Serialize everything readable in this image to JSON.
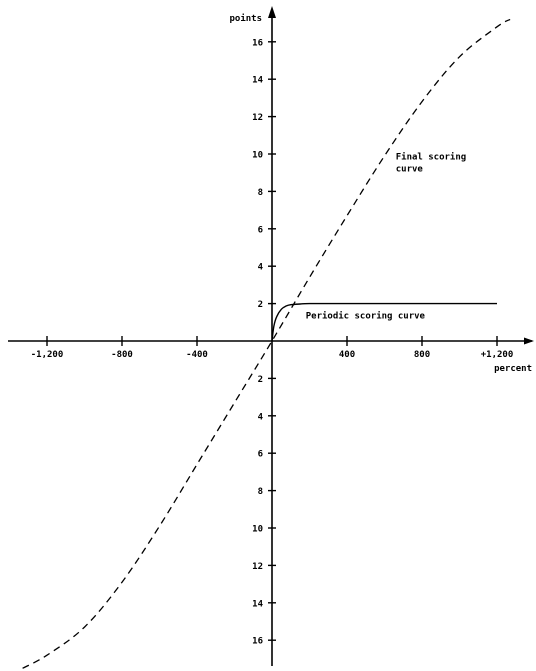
{
  "chart_data": {
    "type": "line",
    "xlabel": "percent",
    "ylabel": "points",
    "xlim": [
      -1200,
      1200
    ],
    "ylim": [
      -17,
      17
    ],
    "x_ticks": [
      {
        "value": -1200,
        "label": "-1,200"
      },
      {
        "value": -800,
        "label": "-800"
      },
      {
        "value": -400,
        "label": "-400"
      },
      {
        "value": 400,
        "label": "400"
      },
      {
        "value": 800,
        "label": "800"
      },
      {
        "value": 1200,
        "label": "+1,200"
      }
    ],
    "y_ticks_upper": [
      {
        "value": 16,
        "label": "16"
      },
      {
        "value": 14,
        "label": "14"
      },
      {
        "value": 12,
        "label": "12"
      },
      {
        "value": 10,
        "label": "10"
      },
      {
        "value": 8,
        "label": "8"
      },
      {
        "value": 6,
        "label": "6"
      },
      {
        "value": 4,
        "label": "4"
      },
      {
        "value": 2,
        "label": "2"
      }
    ],
    "y_ticks_lower": [
      {
        "value": -2,
        "label": "2"
      },
      {
        "value": -4,
        "label": "4"
      },
      {
        "value": -6,
        "label": "6"
      },
      {
        "value": -8,
        "label": "8"
      },
      {
        "value": -10,
        "label": "10"
      },
      {
        "value": -12,
        "label": "12"
      },
      {
        "value": -14,
        "label": "14"
      },
      {
        "value": -16,
        "label": "16"
      }
    ],
    "series": [
      {
        "name": "Final scoring curve",
        "style": "dashed",
        "x": [
          -1330,
          -1200,
          -1000,
          -800,
          -600,
          -400,
          -200,
          0,
          200,
          400,
          600,
          800,
          1000,
          1200,
          1270
        ],
        "y": [
          -17.5,
          -16.8,
          -15.3,
          -12.9,
          -9.9,
          -6.6,
          -3.3,
          0,
          3.4,
          6.7,
          9.9,
          12.8,
          15.2,
          16.8,
          17.2
        ]
      },
      {
        "name": "Periodic scoring curve",
        "style": "solid",
        "x": [
          0,
          10,
          25,
          50,
          75,
          100,
          150,
          200,
          400,
          800,
          1200
        ],
        "y": [
          0,
          0.8,
          1.3,
          1.7,
          1.87,
          1.94,
          1.98,
          2.0,
          2.0,
          2.0,
          2.0
        ]
      }
    ],
    "annotations": [
      {
        "series": "Final scoring curve",
        "lines": [
          "Final scoring",
          "curve"
        ],
        "at_x": 660,
        "at_y": 9.7
      },
      {
        "series": "Periodic scoring curve",
        "lines": [
          "Periodic scoring curve"
        ],
        "at_x": 180,
        "at_y": 1.2
      }
    ],
    "grid": false,
    "legend": "none"
  }
}
